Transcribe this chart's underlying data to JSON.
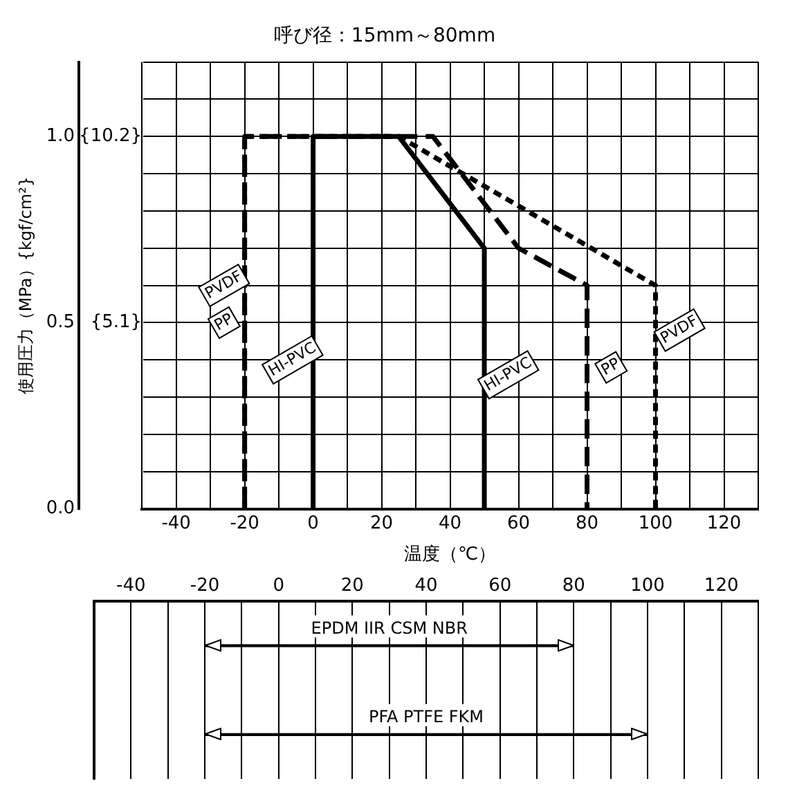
{
  "chart_data": [
    {
      "type": "line",
      "title": "呼び径：15mm～80mm",
      "xlabel": "温度（℃）",
      "ylabel": "使用圧力（MPa）{kgf/cm²}",
      "xlim": [
        -50,
        130
      ],
      "xticks": [
        {
          "value": -50,
          "label": null
        },
        -40,
        {
          "value": -30,
          "label": null
        },
        -20,
        {
          "value": -10,
          "label": null
        },
        0,
        {
          "value": 10,
          "label": null
        },
        20,
        {
          "value": 30,
          "label": null
        },
        40,
        {
          "value": 50,
          "label": null
        },
        60,
        {
          "value": 70,
          "label": null
        },
        80,
        {
          "value": 90,
          "label": null
        },
        100,
        {
          "value": 110,
          "label": null
        },
        120,
        {
          "value": 130,
          "label": null
        }
      ],
      "ylim": [
        0,
        1.2
      ],
      "y2lim": [
        0,
        12.24
      ],
      "y2ticks": [
        {
          "value": 0,
          "label": null
        },
        {
          "value": 5.1,
          "label": "{5.1}"
        },
        {
          "value": 10.2,
          "label": "{10.2}"
        }
      ],
      "yticks": [
        {
          "value": 0,
          "label": "0.0"
        },
        {
          "value": 0.1,
          "label": null
        },
        {
          "value": 0.2,
          "label": null
        },
        {
          "value": 0.3,
          "label": null
        },
        {
          "value": 0.4,
          "label": null
        },
        {
          "value": 0.5,
          "label": "0.5"
        },
        {
          "value": 0.6,
          "label": null
        },
        {
          "value": 0.7,
          "label": null
        },
        {
          "value": 0.8,
          "label": null
        },
        {
          "value": 0.9,
          "label": null
        },
        {
          "value": 1,
          "label": "1.0"
        },
        {
          "value": 1.1,
          "label": null
        },
        {
          "value": 1.2,
          "label": null
        }
      ],
      "grid": true,
      "legend": false,
      "marker": "none",
      "series": [
        {
          "name": "PVDF",
          "color": "#000000",
          "line_style": "dotted",
          "x": [
            -20,
            -20,
            25,
            100,
            100
          ],
          "values": [
            0,
            1,
            1,
            0.6,
            0
          ]
        },
        {
          "name": "PP",
          "color": "#000000",
          "line_style": "dashed",
          "x": [
            -20,
            -20,
            35,
            60,
            80,
            80
          ],
          "values": [
            0,
            1,
            1,
            0.7,
            0.6,
            0
          ]
        },
        {
          "name": "HI-PVC",
          "color": "#000000",
          "line_style": "solid",
          "x": [
            0,
            0,
            25,
            50,
            50
          ],
          "values": [
            0,
            1,
            1,
            0.7,
            0
          ]
        }
      ]
    },
    {
      "type": "bar",
      "orientation": "horizontal",
      "categories": [
        "EPDM IIR CSM NBR",
        "PFA PTFE FKM"
      ],
      "base": [
        -20,
        -20
      ],
      "values": [
        100,
        120
      ],
      "color": "#000000",
      "xlim": [
        -50,
        130
      ],
      "xticks": [
        {
          "value": -50,
          "label": null
        },
        -40,
        {
          "value": -30,
          "label": null
        },
        -20,
        {
          "value": -10,
          "label": null
        },
        0,
        {
          "value": 10,
          "label": null
        },
        20,
        {
          "value": 30,
          "label": null
        },
        40,
        {
          "value": 50,
          "label": null
        },
        60,
        {
          "value": 70,
          "label": null
        },
        80,
        {
          "value": 90,
          "label": null
        },
        100,
        {
          "value": 110,
          "label": null
        },
        120,
        {
          "value": 130,
          "label": null
        }
      ],
      "grid": "x",
      "legend": false
    }
  ]
}
